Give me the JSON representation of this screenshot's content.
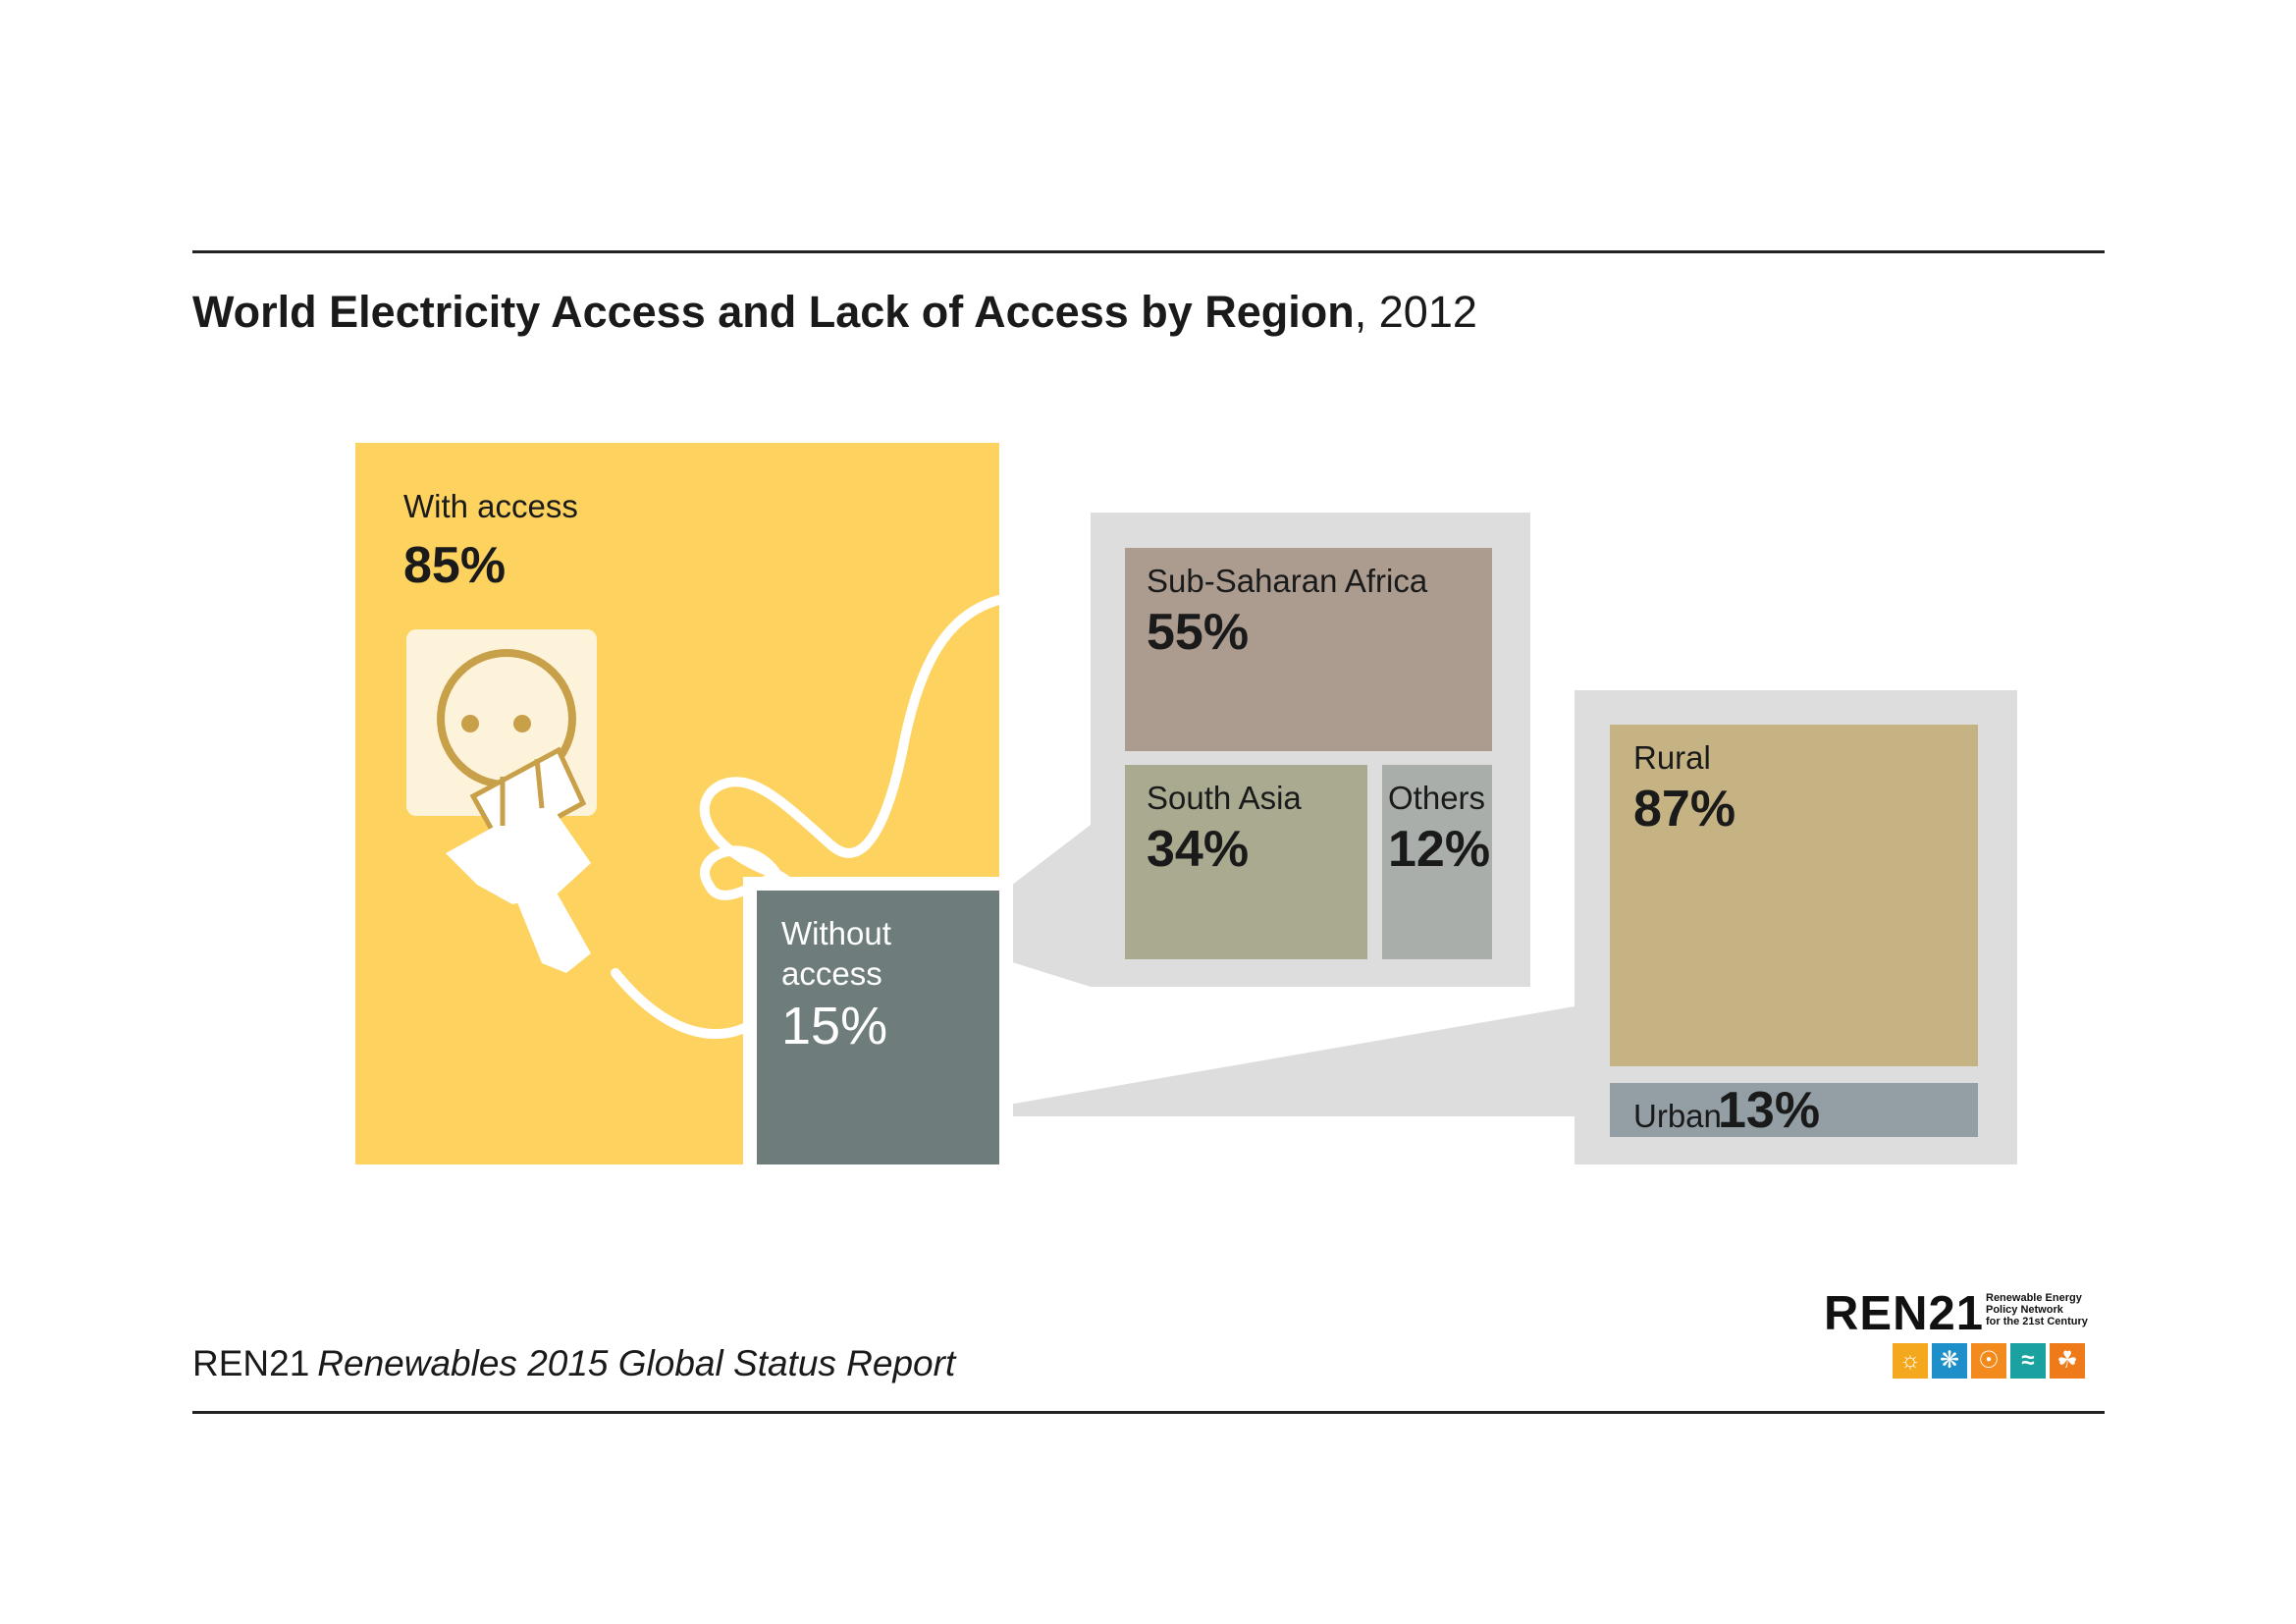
{
  "chart_data": {
    "type": "treemap",
    "title": "World Electricity Access and Lack of Access by Region",
    "year": "2012",
    "world": [
      {
        "name": "With access",
        "value": 85,
        "label": "85%"
      },
      {
        "name": "Without access",
        "value": 15,
        "label": "15%"
      }
    ],
    "without_access_by_region": [
      {
        "name": "Sub-Saharan Africa",
        "value": 55,
        "label": "55%"
      },
      {
        "name": "South Asia",
        "value": 34,
        "label": "34%"
      },
      {
        "name": "Others",
        "value": 12,
        "label": "12%"
      }
    ],
    "without_access_by_area": [
      {
        "name": "Rural",
        "value": 87,
        "label": "87%"
      },
      {
        "name": "Urban",
        "value": 13,
        "label": "13%"
      }
    ]
  },
  "labels": {
    "without_line1": "Without",
    "without_line2": "access"
  },
  "source": {
    "org": "REN21",
    "publication": "Renewables 2015 Global Status Report"
  },
  "logo": {
    "wordmark": "REN21",
    "tagline": [
      "Renewable Energy",
      "Policy Network",
      "for the 21st Century"
    ],
    "icons": [
      "sun-icon",
      "wind-turbine-icon",
      "flame-icon",
      "water-waves-icon",
      "leaf-icon"
    ]
  },
  "colors": {
    "with_access": "#fdd25f",
    "without_access": "#6e7d7b",
    "sub_saharan_africa": "#ac9c8f",
    "south_asia": "#a9aa90",
    "others": "#a9aeaa",
    "rural": "#c6b384",
    "urban": "#939fa4",
    "panel": "#dcdddc",
    "logo_icons": [
      "#f4a81d",
      "#1f8fc9",
      "#f28a1d",
      "#1aa2a0",
      "#ee7a1a"
    ]
  }
}
